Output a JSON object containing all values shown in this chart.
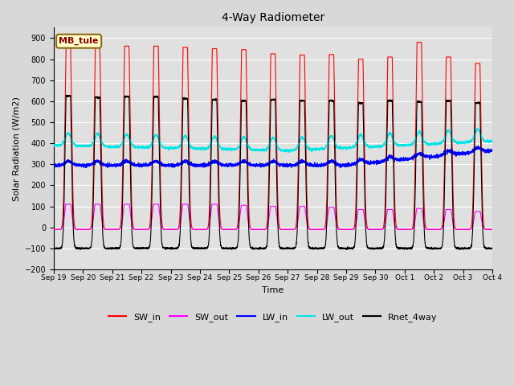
{
  "title": "4-Way Radiometer",
  "xlabel": "Time",
  "ylabel": "Solar Radiation (W/m2)",
  "ylim": [
    -200,
    950
  ],
  "yticks": [
    -200,
    -100,
    0,
    100,
    200,
    300,
    400,
    500,
    600,
    700,
    800,
    900
  ],
  "background_color": "#d8d8d8",
  "plot_bg_color": "#e0e0e0",
  "grid_color": "#ffffff",
  "label_box_text": "MB_tule",
  "label_box_bg": "#ffffcc",
  "label_box_border": "#8b6914",
  "legend_entries": [
    "SW_in",
    "SW_out",
    "LW_in",
    "LW_out",
    "Rnet_4way"
  ],
  "legend_colors": [
    "#ff0000",
    "#ff00ff",
    "#0000ff",
    "#00e5e5",
    "#000000"
  ],
  "sw_in_peaks": [
    870,
    870,
    862,
    862,
    856,
    850,
    845,
    825,
    820,
    822,
    800,
    810,
    880,
    810,
    780
  ],
  "sw_out_peaks": [
    110,
    110,
    110,
    110,
    110,
    110,
    105,
    100,
    100,
    95,
    85,
    85,
    90,
    85,
    75
  ],
  "rnet_peaks": [
    625,
    618,
    622,
    620,
    612,
    608,
    602,
    607,
    602,
    602,
    592,
    602,
    597,
    602,
    592
  ],
  "lw_in_base": 295,
  "lw_out_base": 390,
  "days": 15,
  "pts_per_day": 288,
  "xtick_labels": [
    "Sep 19",
    "Sep 20",
    "Sep 21",
    "Sep 22",
    "Sep 23",
    "Sep 24",
    "Sep 25",
    "Sep 26",
    "Sep 27",
    "Sep 28",
    "Sep 29",
    "Sep 30",
    "Oct 1",
    "Oct 2",
    "Oct 3",
    "Oct 4"
  ],
  "figsize": [
    6.4,
    4.8
  ],
  "dpi": 100
}
